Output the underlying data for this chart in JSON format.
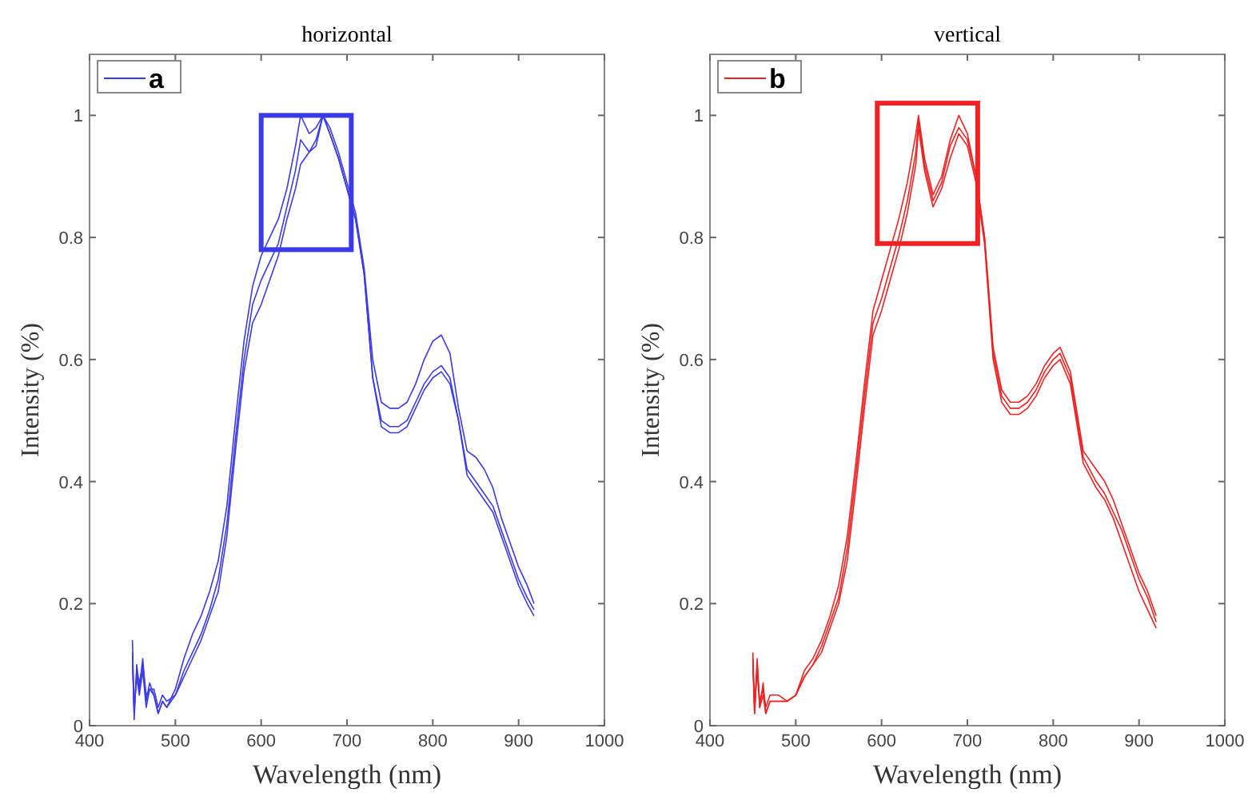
{
  "chart_data": [
    {
      "type": "line",
      "title": "horizontal",
      "xlabel": "Wavelength (nm)",
      "ylabel": "Intensity (%)",
      "xlim": [
        400,
        1000
      ],
      "xticks": [
        400,
        500,
        600,
        700,
        800,
        900,
        1000
      ],
      "ylim": [
        0,
        1.1
      ],
      "yticks": [
        0,
        0.2,
        0.4,
        0.6,
        0.8,
        1
      ],
      "legend": "top left",
      "grid": false,
      "line_style": "solid",
      "marker": "none",
      "x": [
        450,
        452,
        455,
        458,
        462,
        466,
        470,
        475,
        480,
        485,
        490,
        500,
        510,
        520,
        530,
        540,
        550,
        560,
        570,
        580,
        590,
        600,
        610,
        620,
        630,
        640,
        646,
        656,
        664,
        672,
        680,
        690,
        700,
        710,
        720,
        730,
        740,
        750,
        760,
        770,
        780,
        790,
        800,
        810,
        820,
        830,
        840,
        850,
        860,
        870,
        880,
        890,
        900,
        910,
        918
      ],
      "series": [
        {
          "name": "a",
          "color": "#3a3ae8",
          "values": [
            0.14,
            0.01,
            0.1,
            0.06,
            0.11,
            0.04,
            0.07,
            0.05,
            0.02,
            0.04,
            0.03,
            0.06,
            0.11,
            0.15,
            0.18,
            0.22,
            0.27,
            0.36,
            0.5,
            0.63,
            0.72,
            0.77,
            0.8,
            0.83,
            0.88,
            0.95,
            1.0,
            0.97,
            0.98,
            1.0,
            0.98,
            0.94,
            0.89,
            0.84,
            0.75,
            0.6,
            0.53,
            0.52,
            0.52,
            0.53,
            0.56,
            0.6,
            0.63,
            0.64,
            0.61,
            0.52,
            0.45,
            0.44,
            0.42,
            0.39,
            0.34,
            0.3,
            0.26,
            0.23,
            0.2
          ]
        },
        {
          "color": "#3a3ae8",
          "values": [
            0.1,
            0.03,
            0.08,
            0.05,
            0.09,
            0.03,
            0.06,
            0.06,
            0.03,
            0.05,
            0.04,
            0.05,
            0.09,
            0.12,
            0.15,
            0.19,
            0.24,
            0.33,
            0.47,
            0.6,
            0.69,
            0.73,
            0.76,
            0.79,
            0.85,
            0.91,
            0.96,
            0.94,
            0.96,
            1.0,
            0.97,
            0.93,
            0.88,
            0.83,
            0.74,
            0.57,
            0.5,
            0.49,
            0.49,
            0.5,
            0.53,
            0.56,
            0.58,
            0.59,
            0.57,
            0.5,
            0.42,
            0.4,
            0.38,
            0.36,
            0.32,
            0.28,
            0.24,
            0.21,
            0.19
          ]
        },
        {
          "color": "#3a3ae8",
          "values": [
            0.12,
            0.02,
            0.09,
            0.07,
            0.1,
            0.05,
            0.06,
            0.05,
            0.02,
            0.04,
            0.03,
            0.05,
            0.08,
            0.11,
            0.14,
            0.18,
            0.22,
            0.31,
            0.45,
            0.58,
            0.66,
            0.69,
            0.73,
            0.77,
            0.83,
            0.88,
            0.92,
            0.94,
            0.95,
            1.0,
            0.97,
            0.93,
            0.88,
            0.83,
            0.74,
            0.57,
            0.49,
            0.48,
            0.48,
            0.49,
            0.52,
            0.55,
            0.57,
            0.58,
            0.56,
            0.5,
            0.41,
            0.39,
            0.37,
            0.35,
            0.31,
            0.27,
            0.23,
            0.2,
            0.18
          ]
        }
      ]
    },
    {
      "type": "line",
      "title": "vertical",
      "xlabel": "Wavelength (nm)",
      "ylabel": "Intensity (%)",
      "xlim": [
        400,
        1000
      ],
      "xticks": [
        400,
        500,
        600,
        700,
        800,
        900,
        1000
      ],
      "ylim": [
        0,
        1.1
      ],
      "yticks": [
        0,
        0.2,
        0.4,
        0.6,
        0.8,
        1
      ],
      "legend": "top left",
      "grid": false,
      "line_style": "solid",
      "marker": "none",
      "x": [
        450,
        452,
        455,
        458,
        462,
        465,
        470,
        480,
        490,
        500,
        510,
        520,
        530,
        540,
        550,
        560,
        570,
        580,
        590,
        600,
        610,
        620,
        630,
        640,
        643,
        650,
        660,
        670,
        680,
        690,
        700,
        710,
        720,
        730,
        740,
        750,
        760,
        770,
        780,
        790,
        800,
        808,
        820,
        835,
        850,
        860,
        870,
        880,
        890,
        900,
        910,
        920
      ],
      "series": [
        {
          "name": "b",
          "color": "#ee2222",
          "values": [
            0.12,
            0.02,
            0.11,
            0.03,
            0.07,
            0.02,
            0.04,
            0.04,
            0.04,
            0.05,
            0.09,
            0.11,
            0.14,
            0.18,
            0.23,
            0.31,
            0.43,
            0.56,
            0.68,
            0.73,
            0.78,
            0.83,
            0.89,
            0.97,
            1.0,
            0.93,
            0.87,
            0.9,
            0.96,
            1.0,
            0.97,
            0.9,
            0.8,
            0.62,
            0.55,
            0.53,
            0.53,
            0.54,
            0.56,
            0.59,
            0.61,
            0.62,
            0.58,
            0.45,
            0.42,
            0.4,
            0.37,
            0.33,
            0.29,
            0.25,
            0.22,
            0.18
          ]
        },
        {
          "color": "#ee2222",
          "values": [
            0.1,
            0.03,
            0.09,
            0.04,
            0.06,
            0.03,
            0.05,
            0.05,
            0.04,
            0.05,
            0.08,
            0.1,
            0.13,
            0.17,
            0.21,
            0.29,
            0.41,
            0.54,
            0.66,
            0.7,
            0.75,
            0.8,
            0.86,
            0.94,
            0.99,
            0.92,
            0.86,
            0.89,
            0.95,
            0.98,
            0.96,
            0.9,
            0.8,
            0.61,
            0.54,
            0.52,
            0.52,
            0.53,
            0.55,
            0.58,
            0.6,
            0.61,
            0.57,
            0.44,
            0.4,
            0.38,
            0.35,
            0.32,
            0.28,
            0.24,
            0.21,
            0.17
          ]
        },
        {
          "color": "#ee2222",
          "values": [
            0.11,
            0.02,
            0.1,
            0.03,
            0.05,
            0.02,
            0.04,
            0.04,
            0.04,
            0.05,
            0.08,
            0.1,
            0.12,
            0.16,
            0.2,
            0.27,
            0.39,
            0.52,
            0.64,
            0.68,
            0.73,
            0.78,
            0.84,
            0.92,
            0.98,
            0.91,
            0.85,
            0.88,
            0.93,
            0.97,
            0.95,
            0.89,
            0.79,
            0.6,
            0.53,
            0.51,
            0.51,
            0.52,
            0.54,
            0.57,
            0.59,
            0.6,
            0.56,
            0.43,
            0.39,
            0.37,
            0.34,
            0.3,
            0.26,
            0.22,
            0.19,
            0.16
          ]
        }
      ]
    }
  ]
}
